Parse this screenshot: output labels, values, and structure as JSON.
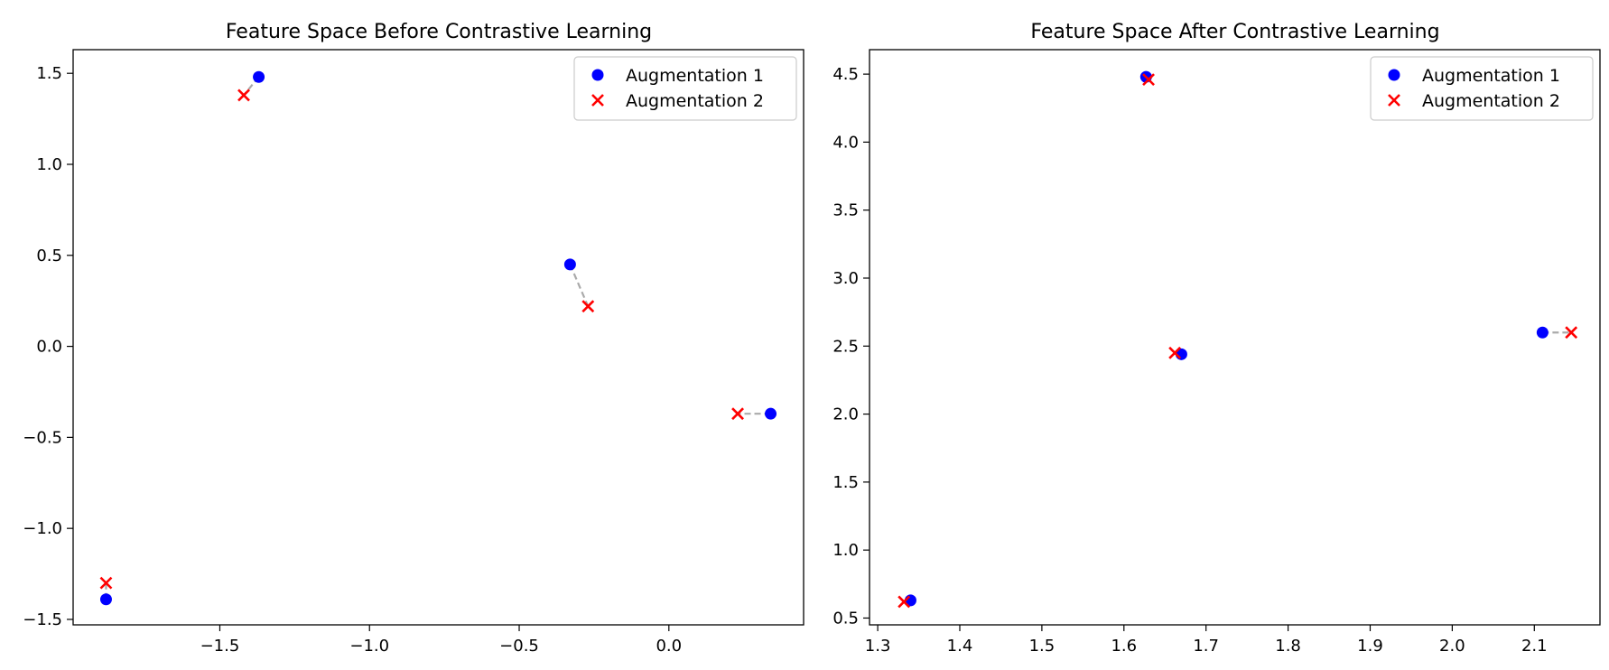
{
  "chart_data": [
    {
      "type": "scatter",
      "title": "Feature Space Before Contrastive Learning",
      "xlim": [
        -1.99,
        0.45
      ],
      "ylim": [
        -1.53,
        1.63
      ],
      "xticks": [
        -1.5,
        -1.0,
        -0.5,
        0.0
      ],
      "xtick_labels": [
        "−1.5",
        "−1.0",
        "−0.5",
        "0.0"
      ],
      "yticks": [
        -1.5,
        -1.0,
        -0.5,
        0.0,
        0.5,
        1.0,
        1.5
      ],
      "ytick_labels": [
        "−1.5",
        "−1.0",
        "−0.5",
        "0.0",
        "0.5",
        "1.0",
        "1.5"
      ],
      "grid": false,
      "legend_position": "top-right",
      "series": [
        {
          "name": "Augmentation 1",
          "marker": "circle",
          "color": "#0000ff",
          "points": [
            [
              -1.88,
              -1.39
            ],
            [
              -1.37,
              1.48
            ],
            [
              -0.33,
              0.45
            ],
            [
              0.34,
              -0.37
            ]
          ]
        },
        {
          "name": "Augmentation 2",
          "marker": "x",
          "color": "#ff0000",
          "points": [
            [
              -1.88,
              -1.3
            ],
            [
              -1.42,
              1.38
            ],
            [
              -0.27,
              0.22
            ],
            [
              0.23,
              -0.37
            ]
          ]
        }
      ],
      "connectors_color": "#aaaaaa"
    },
    {
      "type": "scatter",
      "title": "Feature Space After Contrastive Learning",
      "xlim": [
        1.29,
        2.18
      ],
      "ylim": [
        0.45,
        4.68
      ],
      "xticks": [
        1.3,
        1.4,
        1.5,
        1.6,
        1.7,
        1.8,
        1.9,
        2.0,
        2.1
      ],
      "xtick_labels": [
        "1.3",
        "1.4",
        "1.5",
        "1.6",
        "1.7",
        "1.8",
        "1.9",
        "2.0",
        "2.1"
      ],
      "yticks": [
        0.5,
        1.0,
        1.5,
        2.0,
        2.5,
        3.0,
        3.5,
        4.0,
        4.5
      ],
      "ytick_labels": [
        "0.5",
        "1.0",
        "1.5",
        "2.0",
        "2.5",
        "3.0",
        "3.5",
        "4.0",
        "4.5"
      ],
      "grid": false,
      "legend_position": "top-right",
      "series": [
        {
          "name": "Augmentation 1",
          "marker": "circle",
          "color": "#0000ff",
          "points": [
            [
              1.34,
              0.63
            ],
            [
              1.627,
              4.48
            ],
            [
              1.67,
              2.44
            ],
            [
              2.11,
              2.6
            ]
          ]
        },
        {
          "name": "Augmentation 2",
          "marker": "x",
          "color": "#ff0000",
          "points": [
            [
              1.332,
              0.62
            ],
            [
              1.63,
              4.46
            ],
            [
              1.662,
              2.45
            ],
            [
              2.145,
              2.6
            ]
          ]
        }
      ],
      "connectors_color": "#aaaaaa"
    }
  ]
}
